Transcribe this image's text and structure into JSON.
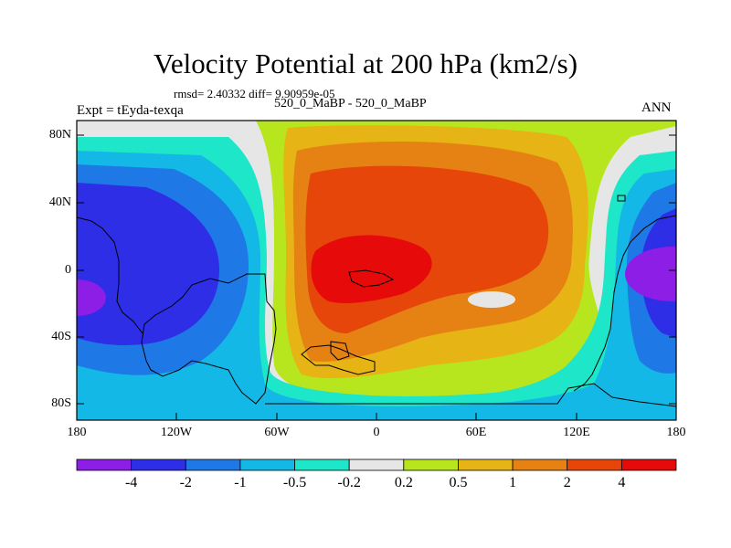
{
  "title": "Velocity Potential at 200 hPa (km2/s)",
  "stats": "rmsd= 2.40332 diff= 9.90959e-05",
  "left_label": "Expt = tEyda-texqa",
  "center_label": "520_0_MaBP - 520_0_MaBP",
  "right_label": "ANN",
  "lat_labels": [
    "80N",
    "40N",
    "0",
    "40S",
    "80S"
  ],
  "lon_labels": [
    "180",
    "120W",
    "60W",
    "0",
    "60E",
    "120E",
    "180"
  ],
  "colorbar": {
    "colors": [
      "#8c1ee6",
      "#2e2ee6",
      "#1e78e6",
      "#14b8e6",
      "#1ee6c8",
      "#e6e6e6",
      "#b8e61e",
      "#e6b414",
      "#e68214",
      "#e6460a",
      "#e60a0a"
    ],
    "labels": [
      "-4",
      "-2",
      "-1",
      "-0.5",
      "-0.2",
      "0.2",
      "0.5",
      "1",
      "2",
      "4"
    ]
  },
  "palette": {
    "v_m4": "#8c1ee6",
    "v_m2": "#2e2ee6",
    "v_m1": "#1e78e6",
    "v_m05": "#14b8e6",
    "v_m02": "#1ee6c8",
    "v_0": "#e6e6e6",
    "v_02": "#b8e61e",
    "v_05": "#e6b414",
    "v_1": "#e68214",
    "v_2": "#e6460a",
    "v_4": "#e60a0a"
  }
}
